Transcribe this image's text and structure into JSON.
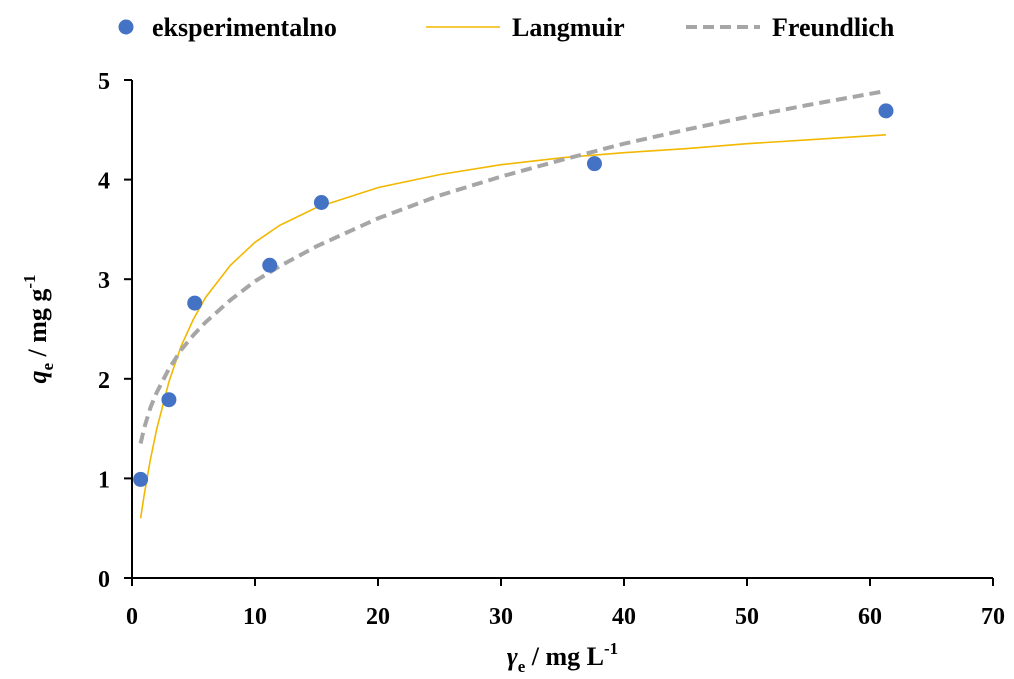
{
  "chart_data": {
    "type": "scatter",
    "xlim": [
      0,
      70
    ],
    "ylim": [
      0,
      5
    ],
    "x_ticks": [
      "0",
      "10",
      "20",
      "30",
      "40",
      "50",
      "60",
      "70"
    ],
    "y_ticks": [
      "0",
      "1",
      "2",
      "3",
      "4",
      "5"
    ],
    "xlabel": {
      "symbol": "γ",
      "subscript": "e",
      "unit": " / mg L",
      "superscript": "-1"
    },
    "ylabel": {
      "symbol": "q",
      "subscript": "e",
      "unit": " / mg g",
      "superscript": "-1"
    },
    "grid": false,
    "legend_position": "top",
    "series": [
      {
        "name": "eksperimentalno",
        "kind": "markers",
        "color": "#4472C4",
        "x": [
          0.7,
          3.0,
          5.1,
          11.2,
          15.4,
          37.6,
          61.3
        ],
        "y": [
          0.99,
          1.79,
          2.76,
          3.14,
          3.77,
          4.16,
          4.69
        ]
      },
      {
        "name": "Langmuir",
        "kind": "line",
        "color": "#F2B800",
        "x": [
          0.7,
          1.0,
          1.5,
          2.0,
          3.0,
          4.0,
          5.0,
          6.0,
          8.0,
          10.0,
          12.0,
          15.0,
          20.0,
          25.0,
          30.0,
          35.0,
          40.0,
          45.0,
          50.0,
          55.0,
          61.3
        ],
        "y": [
          0.6,
          0.84,
          1.19,
          1.49,
          1.97,
          2.33,
          2.6,
          2.82,
          3.14,
          3.37,
          3.54,
          3.72,
          3.92,
          4.05,
          4.15,
          4.22,
          4.27,
          4.31,
          4.36,
          4.4,
          4.45
        ]
      },
      {
        "name": "Freundlich",
        "kind": "dashed-line",
        "color": "#A6A6A6",
        "x": [
          0.7,
          1.0,
          1.5,
          2.0,
          3.0,
          4.0,
          5.0,
          6.0,
          8.0,
          10.0,
          12.0,
          15.0,
          20.0,
          25.0,
          30.0,
          35.0,
          40.0,
          45.0,
          50.0,
          55.0,
          61.3
        ],
        "y": [
          1.35,
          1.51,
          1.71,
          1.86,
          2.1,
          2.29,
          2.44,
          2.57,
          2.79,
          2.98,
          3.13,
          3.33,
          3.61,
          3.84,
          4.03,
          4.2,
          4.36,
          4.5,
          4.63,
          4.75,
          4.89
        ]
      }
    ]
  }
}
